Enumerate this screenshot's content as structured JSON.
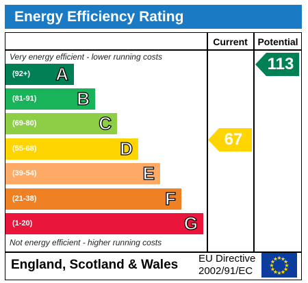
{
  "title": "Energy Efficiency Rating",
  "columns": {
    "current": "Current",
    "potential": "Potential"
  },
  "notes": {
    "top": "Very energy efficient - lower running costs",
    "bottom": "Not energy efficient - higher running costs"
  },
  "bands": [
    {
      "range": "(92+)",
      "letter": "A",
      "color": "#008054"
    },
    {
      "range": "(81-91)",
      "letter": "B",
      "color": "#19b459"
    },
    {
      "range": "(69-80)",
      "letter": "C",
      "color": "#8dce46"
    },
    {
      "range": "(55-68)",
      "letter": "D",
      "color": "#ffd500"
    },
    {
      "range": "(39-54)",
      "letter": "E",
      "color": "#fcaa65"
    },
    {
      "range": "(21-38)",
      "letter": "F",
      "color": "#ef8023"
    },
    {
      "range": "(1-20)",
      "letter": "G",
      "color": "#e9153b"
    }
  ],
  "ratings": {
    "current": {
      "value": "67",
      "color": "#ffd500"
    },
    "potential": {
      "value": "113",
      "color": "#008054"
    }
  },
  "footer": {
    "region": "England, Scotland & Wales",
    "directive_line1": "EU Directive",
    "directive_line2": "2002/91/EC"
  }
}
